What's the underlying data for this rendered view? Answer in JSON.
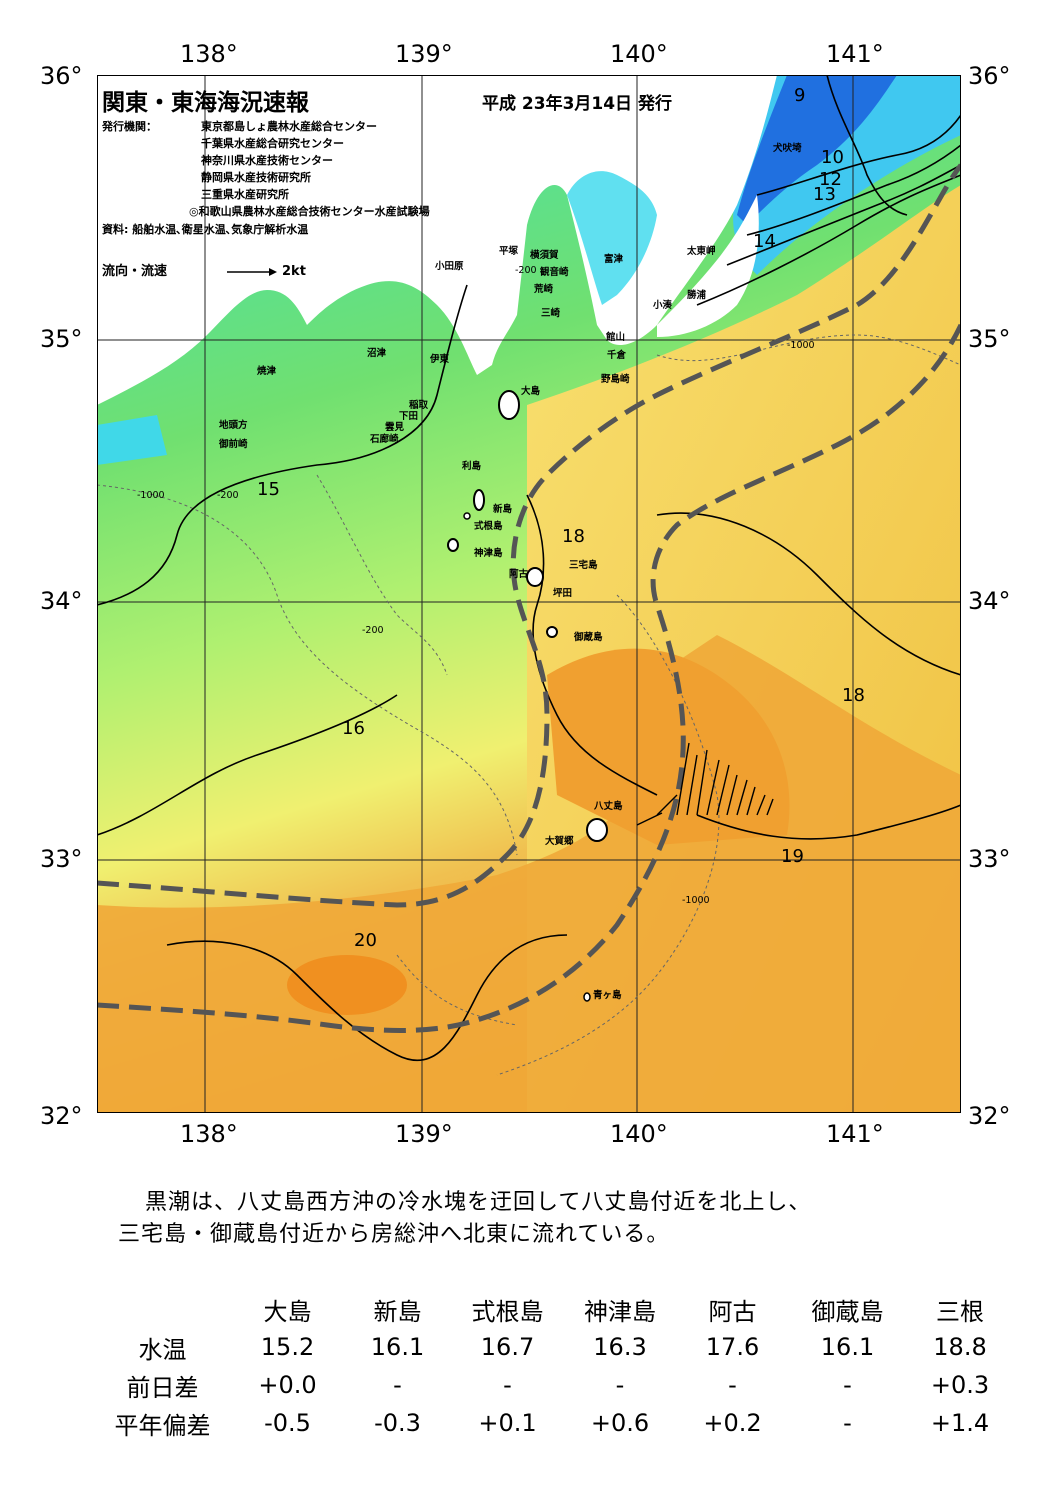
{
  "title": "関東・東海海況速報",
  "issued": "平成 23年3月14日 発行",
  "issuer_label": "発行機関：",
  "issuers": [
    "東京都島しょ農林水産総合センター",
    "千葉県水産総合研究センター",
    "神奈川県水産技術センター",
    "静岡県水産技術研究所",
    "三重県水産研究所",
    "◎和歌山県農林水産総合技術センター水産試験場"
  ],
  "sources": "資料: 船舶水温､衛星水温､気象庁解析水温",
  "legend": {
    "label": "流向・流速",
    "speed": "2kt"
  },
  "lon_labels": [
    "138°",
    "139°",
    "140°",
    "141°"
  ],
  "lat_labels": [
    "36°",
    "35°",
    "34°",
    "33°",
    "32°"
  ],
  "isotherm_labels": [
    "9",
    "10",
    "12",
    "13",
    "14",
    "15",
    "16",
    "18",
    "18",
    "19",
    "20"
  ],
  "depth_labels": [
    "-200",
    "-1000"
  ],
  "places": [
    "犬吠埼",
    "太東岬",
    "勝浦",
    "小湊",
    "富津",
    "横須賀",
    "観音崎",
    "荒崎",
    "三崎",
    "館山",
    "千倉",
    "野島崎",
    "平塚",
    "小田原",
    "沼津",
    "伊東",
    "焼津",
    "稲取",
    "下田",
    "雲見",
    "石廊崎",
    "地頭方",
    "御前崎",
    "大島",
    "利島",
    "新島",
    "式根島",
    "神津島",
    "三宅島",
    "阿古",
    "坪田",
    "御蔵島",
    "八丈島",
    "大賀郷",
    "青ヶ島"
  ],
  "summary": [
    "黒潮は、八丈島西方沖の冷水塊を迂回して八丈島付近を北上し、",
    "三宅島・御蔵島付近から房総沖へ北東に流れている。"
  ],
  "table": {
    "headers": [
      "大島",
      "新島",
      "式根島",
      "神津島",
      "阿古",
      "御蔵島",
      "三根"
    ],
    "rows": [
      {
        "label": "水温",
        "values": [
          "15.2",
          "16.1",
          "16.7",
          "16.3",
          "17.6",
          "16.1",
          "18.8"
        ]
      },
      {
        "label": "前日差",
        "values": [
          "+0.0",
          "-",
          "-",
          "-",
          "-",
          "-",
          "+0.3"
        ]
      },
      {
        "label": "平年偏差",
        "values": [
          "-0.5",
          "-0.3",
          "+0.1",
          "+0.6",
          "+0.2",
          "-",
          "+1.4"
        ]
      }
    ]
  },
  "colors": {
    "cold": "#2060e0",
    "cool": "#40e0f0",
    "mid": "#60e080",
    "warm": "#f0f060",
    "hot": "#f0a030",
    "kuroshio": "#555555"
  }
}
